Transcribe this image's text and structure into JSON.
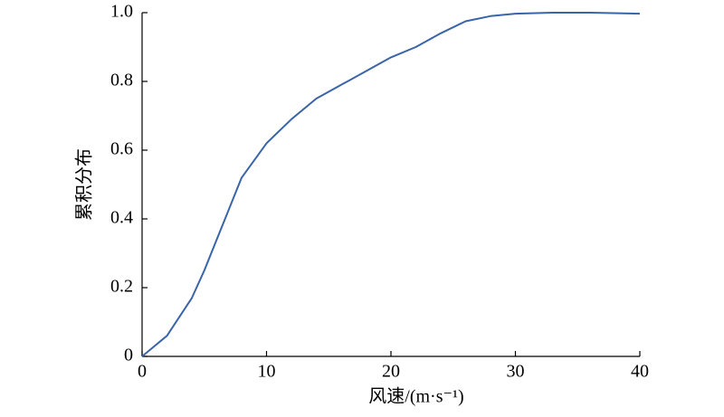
{
  "chart_data": {
    "type": "line",
    "x_label": "风速/(m·s⁻¹)",
    "y_label": "累积分布",
    "x": [
      0,
      2,
      4,
      5,
      6,
      8,
      10,
      12,
      14,
      16,
      18,
      20,
      22,
      24,
      26,
      28,
      30,
      33,
      36,
      40
    ],
    "series": [
      {
        "name": "累积分布",
        "color": "#3a64a8",
        "values": [
          0,
          0.06,
          0.17,
          0.25,
          0.34,
          0.52,
          0.62,
          0.69,
          0.75,
          0.79,
          0.83,
          0.87,
          0.9,
          0.94,
          0.975,
          0.99,
          0.997,
          1.0,
          1.0,
          0.997
        ]
      }
    ],
    "xlim": [
      0,
      40
    ],
    "xticks": [
      0,
      10,
      20,
      30,
      40
    ],
    "ylim": [
      0,
      1
    ],
    "yticks": [
      0,
      0.2,
      0.4,
      0.6,
      0.8,
      {
        "value": 1,
        "label": "1.0"
      }
    ]
  }
}
